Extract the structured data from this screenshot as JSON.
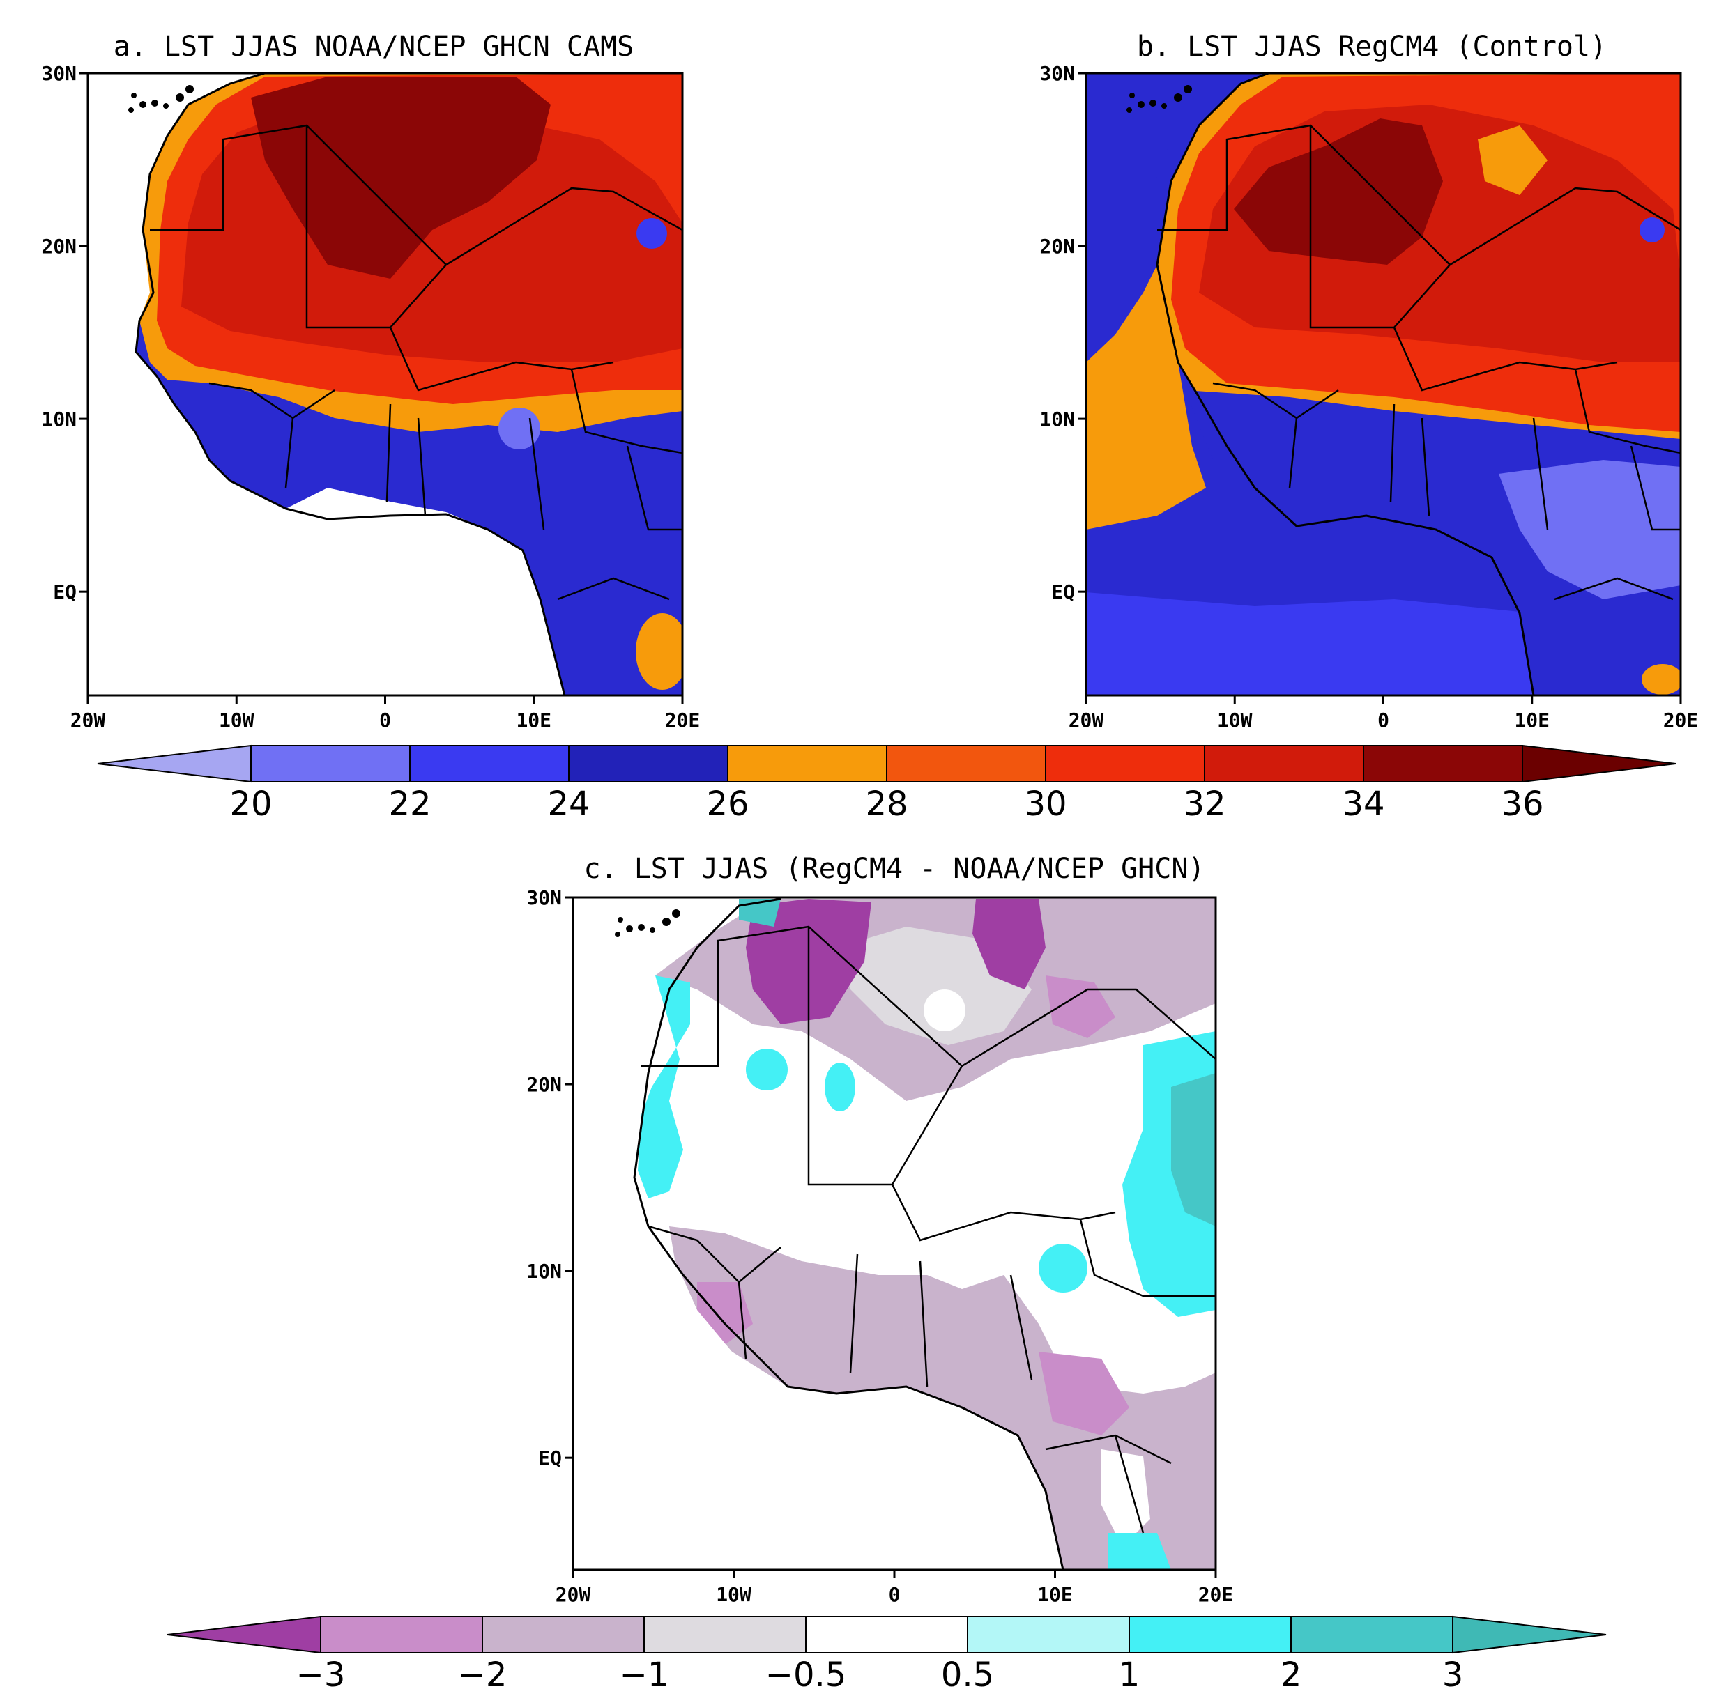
{
  "chart_data": [
    {
      "type": "heatmap",
      "title": "a. LST JJAS NOAA/NCEP GHCN CAMS",
      "xlim": [
        -20,
        20
      ],
      "ylim": [
        -6,
        30
      ],
      "x_ticks": [
        {
          "value": -20,
          "label": "20W"
        },
        {
          "value": -10,
          "label": "10W"
        },
        {
          "value": 0,
          "label": "0"
        },
        {
          "value": 10,
          "label": "10E"
        },
        {
          "value": 20,
          "label": "20E"
        }
      ],
      "y_ticks": [
        {
          "value": 30,
          "label": "30N"
        },
        {
          "value": 20,
          "label": "20N"
        },
        {
          "value": 10,
          "label": "10N"
        },
        {
          "value": 0,
          "label": "EQ"
        }
      ],
      "colorbar": "temperature",
      "regions": [
        {
          "lat_range": [
            -6,
            5
          ],
          "approx_value": 25
        },
        {
          "lat_range": [
            5,
            10
          ],
          "approx_value": 25
        },
        {
          "lat_range": [
            10,
            13
          ],
          "approx_value": 27
        },
        {
          "lat_range": [
            13,
            20
          ],
          "approx_value": 31
        },
        {
          "lat_range": [
            20,
            30
          ],
          "approx_value": 34
        }
      ]
    },
    {
      "type": "heatmap",
      "title": "b. LST JJAS RegCM4 (Control)",
      "xlim": [
        -20,
        20
      ],
      "ylim": [
        -6,
        30
      ],
      "x_ticks": [
        {
          "value": -20,
          "label": "20W"
        },
        {
          "value": -10,
          "label": "10W"
        },
        {
          "value": 0,
          "label": "0"
        },
        {
          "value": 10,
          "label": "10E"
        },
        {
          "value": 20,
          "label": "20E"
        }
      ],
      "y_ticks": [
        {
          "value": 30,
          "label": "30N"
        },
        {
          "value": 20,
          "label": "20N"
        },
        {
          "value": 10,
          "label": "10N"
        },
        {
          "value": 0,
          "label": "EQ"
        }
      ],
      "colorbar": "temperature",
      "regions": [
        {
          "lat_range": [
            -6,
            5
          ],
          "approx_value": 25
        },
        {
          "lat_range": [
            5,
            11
          ],
          "approx_value": 25
        },
        {
          "lat_range": [
            11,
            14
          ],
          "approx_value": 29
        },
        {
          "lat_range": [
            14,
            30
          ],
          "approx_value": 32
        }
      ]
    },
    {
      "type": "heatmap",
      "title": "c. LST JJAS (RegCM4 - NOAA/NCEP GHCN)",
      "xlim": [
        -20,
        20
      ],
      "ylim": [
        -6,
        30
      ],
      "x_ticks": [
        {
          "value": -20,
          "label": "20W"
        },
        {
          "value": -10,
          "label": "10W"
        },
        {
          "value": 0,
          "label": "0"
        },
        {
          "value": 10,
          "label": "10E"
        },
        {
          "value": 20,
          "label": "20E"
        }
      ],
      "y_ticks": [
        {
          "value": 30,
          "label": "30N"
        },
        {
          "value": 20,
          "label": "20N"
        },
        {
          "value": 10,
          "label": "10N"
        },
        {
          "value": 0,
          "label": "EQ"
        }
      ],
      "colorbar": "difference",
      "regions": [
        {
          "lat_range": [
            22,
            30
          ],
          "approx_value": -1.5
        },
        {
          "lat_range": [
            12,
            22
          ],
          "approx_value": 0
        },
        {
          "lat_range": [
            4,
            10
          ],
          "approx_value": -1.5
        },
        {
          "lat_range": [
            -6,
            4
          ],
          "approx_value": -1
        }
      ]
    }
  ],
  "colorbars": {
    "temperature": {
      "labels": [
        "20",
        "22",
        "24",
        "26",
        "28",
        "30",
        "32",
        "34",
        "36"
      ],
      "low_color": "#a6a6f2",
      "high_color": "#6b0000",
      "colors": [
        "#7070f4",
        "#3a3af1",
        "#2222b8",
        "#f79b0b",
        "#f2560e",
        "#ee2d0c",
        "#d11b0b",
        "#8b0606"
      ]
    },
    "difference": {
      "labels": [
        "−3",
        "−2",
        "−1",
        "−0.5",
        "0.5",
        "1",
        "2",
        "3"
      ],
      "low_color": "#9f3ea3",
      "high_color": "#3fb9b5",
      "colors": [
        "#c98dc9",
        "#c9b3cc",
        "#dedbe0",
        "#ffffff",
        "#b3f7f7",
        "#44f0f5",
        "#45c7c7"
      ]
    }
  }
}
